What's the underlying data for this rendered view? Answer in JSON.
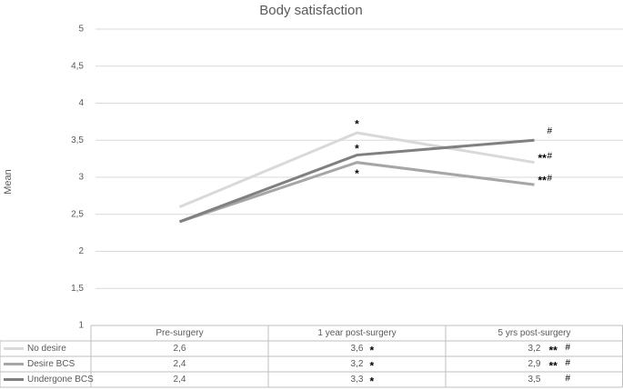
{
  "chart_data": {
    "type": "line",
    "title": "Body satisfaction",
    "y_label": "Mean",
    "categories": [
      "Pre-surgery",
      "1 year post-surgery",
      "5 yrs post-surgery"
    ],
    "ylim": [
      1,
      5
    ],
    "yticks": [
      1,
      {
        "value": 1.5,
        "label": "1,5"
      },
      2,
      {
        "value": 2.5,
        "label": "2,5"
      },
      3,
      {
        "value": 3.5,
        "label": "3,5"
      },
      4,
      {
        "value": 4.5,
        "label": "4,5"
      },
      5
    ],
    "grid": true,
    "series": [
      {
        "name": "No desire",
        "color": "#d9d9d9",
        "values": [
          2.6,
          3.6,
          3.2
        ],
        "value_labels": [
          "2,6",
          "3,6",
          "3,2"
        ],
        "significance": [
          null,
          "*",
          "**"
        ],
        "change": [
          null,
          null,
          "#"
        ]
      },
      {
        "name": "Desire BCS",
        "color": "#a6a6a6",
        "values": [
          2.4,
          3.2,
          2.9
        ],
        "value_labels": [
          "2,4",
          "3,2",
          "2,9"
        ],
        "significance": [
          null,
          "*",
          "**"
        ],
        "change": [
          null,
          null,
          "#"
        ]
      },
      {
        "name": "Undergone BCS",
        "color": "#808080",
        "values": [
          2.4,
          3.3,
          3.5
        ],
        "value_labels": [
          "2,4",
          "3,3",
          "3,5"
        ],
        "significance": [
          null,
          "*",
          null
        ],
        "change": [
          null,
          null,
          "#"
        ]
      }
    ]
  }
}
